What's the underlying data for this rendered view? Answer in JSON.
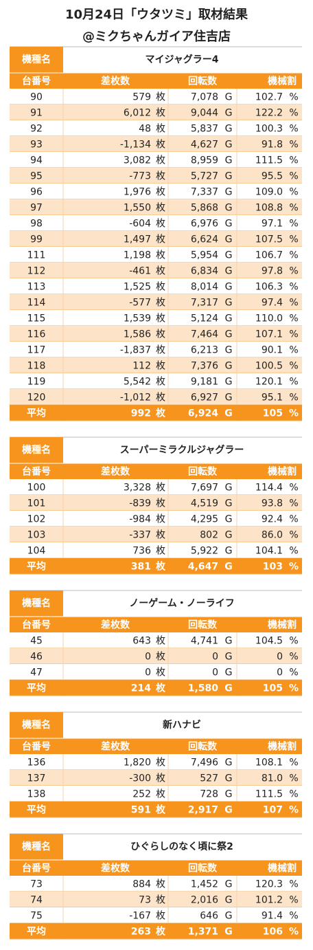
{
  "header": {
    "title": "10月24日「ウタツミ」取材結果",
    "subtitle": "@ミクちゃんガイア住吉店"
  },
  "labels": {
    "machine": "機種名",
    "number": "台番号",
    "diff": "差枚数",
    "games": "回転数",
    "rate": "機械割",
    "average": "平均"
  },
  "units": [
    "枚",
    "G",
    "%"
  ],
  "tables": [
    {
      "machine": "マイジャグラー4",
      "rows": [
        [
          "90",
          "579",
          "7,078",
          "102.7"
        ],
        [
          "91",
          "6,012",
          "9,044",
          "122.2"
        ],
        [
          "92",
          "48",
          "5,837",
          "100.3"
        ],
        [
          "93",
          "-1,134",
          "4,627",
          "91.8"
        ],
        [
          "94",
          "3,082",
          "8,959",
          "111.5"
        ],
        [
          "95",
          "-773",
          "5,727",
          "95.5"
        ],
        [
          "96",
          "1,976",
          "7,337",
          "109.0"
        ],
        [
          "97",
          "1,550",
          "5,868",
          "108.8"
        ],
        [
          "98",
          "-604",
          "6,976",
          "97.1"
        ],
        [
          "99",
          "1,497",
          "6,624",
          "107.5"
        ],
        [
          "111",
          "1,198",
          "5,954",
          "106.7"
        ],
        [
          "112",
          "-461",
          "6,834",
          "97.8"
        ],
        [
          "113",
          "1,525",
          "8,014",
          "106.3"
        ],
        [
          "114",
          "-577",
          "7,317",
          "97.4"
        ],
        [
          "115",
          "1,539",
          "5,124",
          "110.0"
        ],
        [
          "116",
          "1,586",
          "7,464",
          "107.1"
        ],
        [
          "117",
          "-1,837",
          "6,213",
          "90.1"
        ],
        [
          "118",
          "112",
          "7,376",
          "100.5"
        ],
        [
          "119",
          "5,542",
          "9,181",
          "120.1"
        ],
        [
          "120",
          "-1,012",
          "6,927",
          "95.1"
        ]
      ],
      "average": [
        "992",
        "6,924",
        "105"
      ]
    },
    {
      "machine": "スーパーミラクルジャグラー",
      "rows": [
        [
          "100",
          "3,328",
          "7,697",
          "114.4"
        ],
        [
          "101",
          "-839",
          "4,519",
          "93.8"
        ],
        [
          "102",
          "-984",
          "4,295",
          "92.4"
        ],
        [
          "103",
          "-337",
          "802",
          "86.0"
        ],
        [
          "104",
          "736",
          "5,922",
          "104.1"
        ]
      ],
      "average": [
        "381",
        "4,647",
        "103"
      ]
    },
    {
      "machine": "ノーゲーム・ノーライフ",
      "rows": [
        [
          "45",
          "643",
          "4,741",
          "104.5"
        ],
        [
          "46",
          "0",
          "0",
          "0"
        ],
        [
          "47",
          "0",
          "0",
          "0"
        ]
      ],
      "average": [
        "214",
        "1,580",
        "105"
      ]
    },
    {
      "machine": "新ハナビ",
      "rows": [
        [
          "136",
          "1,820",
          "7,496",
          "108.1"
        ],
        [
          "137",
          "-300",
          "527",
          "81.0"
        ],
        [
          "138",
          "252",
          "728",
          "111.5"
        ]
      ],
      "average": [
        "591",
        "2,917",
        "107"
      ]
    },
    {
      "machine": "ひぐらしのなく頃に祭2",
      "rows": [
        [
          "73",
          "884",
          "1,452",
          "120.3"
        ],
        [
          "74",
          "73",
          "2,016",
          "101.2"
        ],
        [
          "75",
          "-167",
          "646",
          "91.4"
        ]
      ],
      "average": [
        "263",
        "1,371",
        "106"
      ]
    }
  ]
}
